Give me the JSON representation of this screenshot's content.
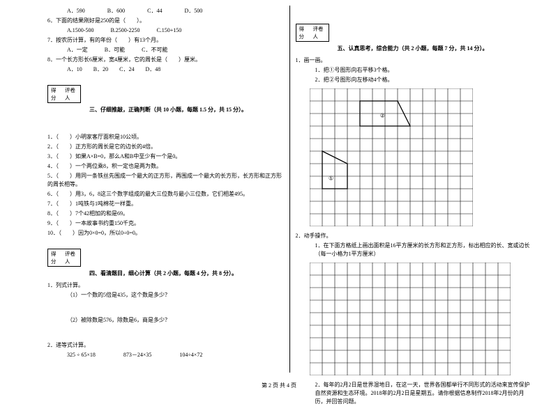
{
  "left": {
    "q5opts": "A．590　　　　B．600　　　　C．44　　　　D．500",
    "q6": "6．下面的结果刚好是250的是（　　）。",
    "q6opts": "A.1500-500　　　B.2500-2250　　　C.150+150",
    "q7": "7．按农历计算，有的年份（　　）有13个月。",
    "q7opts": "A．一定　　　B．可能　　　C．不可能",
    "q8": "8．一个长方形长6厘米，宽4厘米，它的周长是（　　）厘米。",
    "q8opts": "A．10　　B．20　　C．24　　D．48",
    "score_a": "得分",
    "score_b": "评卷人",
    "heading3": "三、仔细推敲，正确判断（共 10 小题，每题 1.5 分，共 15 分）。",
    "j1": "1．（　　）小明家客厅面积是10公顷。",
    "j2": "2．（　　）正方形的周长是它的边长的4倍。",
    "j3": "3．（　　）如果A×B=0，那么A和B中至少有一个是0。",
    "j4": "4．（　　）一个两位乘8，积一定也是两为数。",
    "j5": "5．（　　）用同一条铁丝先围成一个最大的正方形，再围成一个最大的长方形，长方形和正方形的周长相等。",
    "j6": "6．（　　）用3，6，8这三个数字组成的最大三位数与最小三位数，它们相差495。",
    "j7": "7．（　　）1吨铁与1吨棉花一样重。",
    "j8": "8．（　　）7个42相加的和是69。",
    "j9": "9．（　　）一本故事书约重150千克。",
    "j10": "10．（　　）因为0×0=0，所以0÷0=0。",
    "heading4": "四、看清题目，细心计算（共 2 小题，每题 4 分，共 8 分）。",
    "c1": "1．列式计算。",
    "c1a": "（1）一个数的5倍是435，这个数是多少？",
    "c1b": "（2）被除数是576，除数是6，商是多少？",
    "c2": "2．递等式计算。",
    "c2items": "325 ÷ 65×18　　　　　873－24×35　　　　　104÷4×72"
  },
  "right": {
    "score_a": "得分",
    "score_b": "评卷人",
    "heading5": "五、认真思考，综合能力（共 2 小题，每题 7 分，共 14 分）。",
    "d1": "1．画一画。",
    "d1a": "1．把①号图形向右平移3个格。",
    "d1b": "2．把②号图形向左移动4个格。",
    "shape1": "②",
    "shape2": "①",
    "d2": "2．动手操作。",
    "d2a": "1．在下面方格纸上画出面积是16平方厘米的长方形和正方形，标出相应的长、宽或边长（每一小格为1平方厘米）",
    "d2b": "2．每年的2月2日是世界湿地日，在这一天，世界各国都举行不同形式的活动来宣传保护自然资源和生态环境。2018年的2月2日是星期五。请你根据信息制作2018年2月份的月历，并回答问题。"
  },
  "footer": "第 2 页 共 4 页",
  "grid": {
    "cell": 18,
    "cols1": 13,
    "rows1": 11,
    "cols2": 16,
    "rows2": 9,
    "stroke": "#000",
    "thin": "#666"
  }
}
